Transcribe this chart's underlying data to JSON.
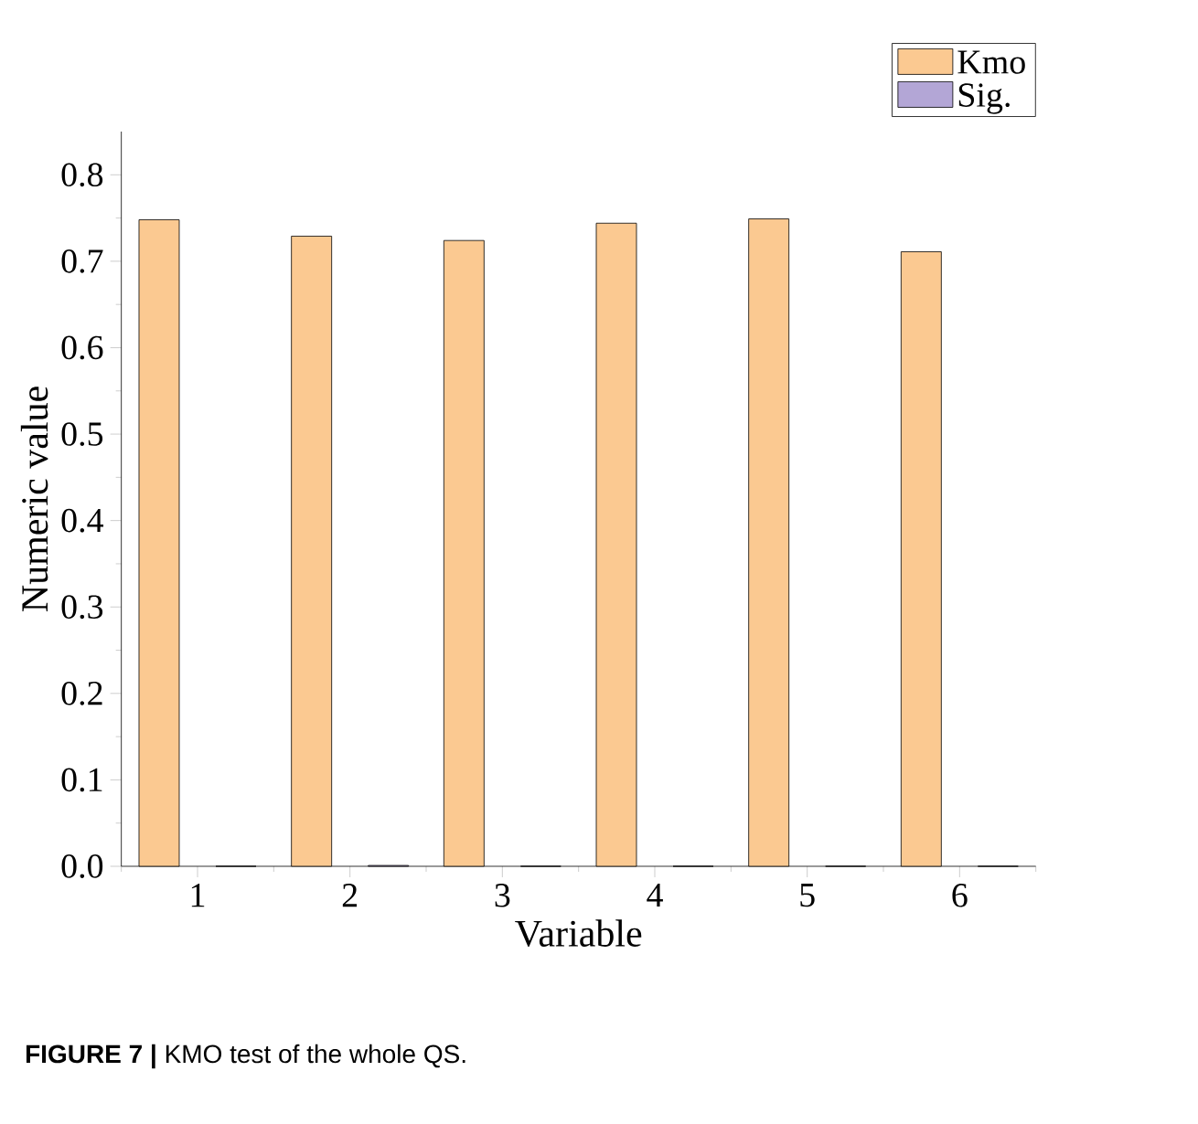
{
  "chart_data": {
    "type": "bar",
    "xlabel": "Variable",
    "ylabel": "Numeric value",
    "categories": [
      "1",
      "2",
      "3",
      "4",
      "5",
      "6"
    ],
    "series": [
      {
        "name": "Kmo",
        "color": "#fbc991",
        "values": [
          0.748,
          0.729,
          0.724,
          0.744,
          0.749,
          0.711
        ]
      },
      {
        "name": "Sig.",
        "color": "#b3a6d6",
        "values": [
          0,
          0.001,
          0,
          0,
          0,
          0
        ]
      }
    ],
    "ylim": [
      0,
      0.85
    ],
    "yticks": [
      {
        "value": 0,
        "label": "0.0"
      },
      0.1,
      0.2,
      0.3,
      0.4,
      0.5,
      0.6,
      0.7,
      0.8
    ],
    "legend": "top right",
    "grid": false,
    "annotations": [
      "**FIGURE 7 |** KMO test of the whole QS."
    ]
  }
}
